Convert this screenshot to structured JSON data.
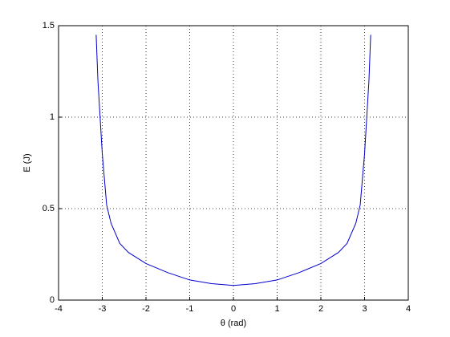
{
  "chart_data": {
    "type": "line",
    "xlabel": "θ (rad)",
    "ylabel": "E (J)",
    "x": [
      -3.14,
      -3.1,
      -3.05,
      -3.0,
      -2.9,
      -2.8,
      -2.6,
      -2.4,
      -2.2,
      -2.0,
      -1.5,
      -1.0,
      -0.5,
      0,
      0.5,
      1.0,
      1.5,
      2.0,
      2.2,
      2.4,
      2.6,
      2.8,
      2.9,
      3.0,
      3.05,
      3.1,
      3.14
    ],
    "series": [
      {
        "color": "#0000cc",
        "values": [
          1.45,
          1.2,
          1.0,
          0.8,
          0.52,
          0.42,
          0.31,
          0.26,
          0.23,
          0.2,
          0.15,
          0.11,
          0.09,
          0.08,
          0.09,
          0.11,
          0.15,
          0.2,
          0.23,
          0.26,
          0.31,
          0.42,
          0.52,
          0.8,
          1.0,
          1.2,
          1.45
        ]
      }
    ],
    "xlim": [
      -4,
      4
    ],
    "ylim": [
      0,
      1.5
    ],
    "xticks": [
      -4,
      -3,
      -2,
      -1,
      0,
      1,
      2,
      3,
      4
    ],
    "yticks": [
      0,
      0.5,
      1,
      1.5
    ],
    "grid": true
  }
}
